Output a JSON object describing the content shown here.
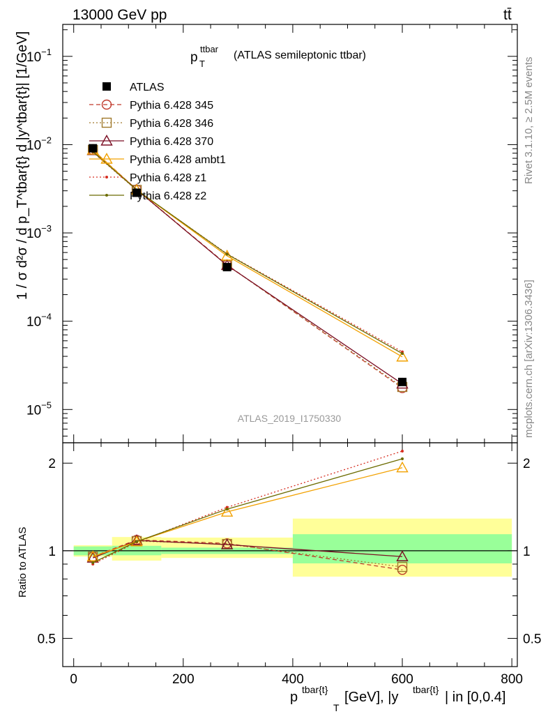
{
  "header": {
    "left": "13000 GeV pp",
    "right": "tt̄"
  },
  "side_labels": {
    "rivet": "Rivet 3.1.10, ≥ 2.5M events",
    "mcplots": "mcplots.cern.ch [arXiv:1306.3436]"
  },
  "watermark": "ATLAS_2019_I1750330",
  "chart_data": [
    {
      "type": "line",
      "title": "p_T^ttbar (ATLAS semileptonic ttbar)",
      "title_main": "p",
      "title_sup": "ttbar",
      "title_sub": "T",
      "title_rest": "(ATLAS semileptonic ttbar)",
      "ylabel": "1 / σ d²σ / d p_T^tbar{t} d |y^tbar{t}| [1/GeV]",
      "yscale": "log",
      "ylim": [
        4.2e-06,
        0.23
      ],
      "xlim": [
        -20,
        810
      ],
      "legend_placement": "top-left",
      "y_tick_labels": [
        {
          "value": 0.1,
          "base": "10",
          "exp": "−1"
        },
        {
          "value": 0.01,
          "base": "10",
          "exp": "−2"
        },
        {
          "value": 0.001,
          "base": "10",
          "exp": "−3"
        },
        {
          "value": 0.0001,
          "base": "10",
          "exp": "−4"
        },
        {
          "value": 1e-05,
          "base": "10",
          "exp": "−5"
        }
      ],
      "data": {
        "name": "ATLAS",
        "x": [
          35,
          115,
          280,
          600
        ],
        "y": [
          0.0091,
          0.00285,
          0.00041,
          2.05e-05
        ]
      },
      "series": [
        {
          "name": "Pythia 6.428 345",
          "color": "#c0392b",
          "dash": "6,4",
          "marker": "circle",
          "x": [
            35,
            115,
            280,
            600
          ],
          "y": [
            0.0087,
            0.0031,
            0.000435,
            1.75e-05
          ]
        },
        {
          "name": "Pythia 6.428 346",
          "color": "#a0792b",
          "dash": "2,3",
          "marker": "square",
          "x": [
            35,
            115,
            280,
            600
          ],
          "y": [
            0.0087,
            0.00307,
            0.000432,
            1.8e-05
          ]
        },
        {
          "name": "Pythia 6.428 370",
          "color": "#7b0f24",
          "dash": "",
          "marker": "triangle",
          "x": [
            35,
            115,
            280,
            600
          ],
          "y": [
            0.0086,
            0.00309,
            0.00043,
            1.95e-05
          ]
        },
        {
          "name": "Pythia 6.428 ambt1",
          "color": "#f2a100",
          "dash": "",
          "marker": "triangle-filled",
          "x": [
            35,
            115,
            280,
            600
          ],
          "y": [
            0.0087,
            0.00306,
            0.00055,
            3.95e-05
          ]
        },
        {
          "name": "Pythia 6.428 z1",
          "color": "#d62d20",
          "dash": "2,3",
          "marker": "dot",
          "x": [
            35,
            115,
            280,
            600
          ],
          "y": [
            0.0082,
            0.00305,
            0.00058,
            4.5e-05
          ]
        },
        {
          "name": "Pythia 6.428 z2",
          "color": "#6b6b00",
          "dash": "",
          "marker": "dot",
          "x": [
            35,
            115,
            280,
            600
          ],
          "y": [
            0.0083,
            0.00307,
            0.000575,
            4.3e-05
          ]
        }
      ]
    },
    {
      "type": "line",
      "ylabel": "Ratio to ATLAS",
      "xlabel": "p_T^tbar{t} [GeV], |y^tbar{t}| in [0,0.4]",
      "xlabel_parts": {
        "p": "p",
        "sup": "tbar{t}",
        "sub": "T",
        "mid": "[GeV], |y",
        "sup2": "tbar{t}",
        "end": "| in [0,0.4]"
      },
      "yscale": "log",
      "ylim": [
        0.4,
        2.35
      ],
      "xlim": [
        -20,
        810
      ],
      "x_ticks": [
        0,
        200,
        400,
        600,
        800
      ],
      "x_tick_labels": [
        "0",
        "200",
        "400",
        "600",
        "800"
      ],
      "y_ticks": [
        0.5,
        1,
        2
      ],
      "y_tick_labels": [
        "0.5",
        "1",
        "2"
      ],
      "bands": [
        {
          "x0": 0,
          "x1": 70,
          "inner": [
            0.965,
            1.035
          ],
          "outer": [
            0.955,
            1.045
          ]
        },
        {
          "x0": 70,
          "x1": 160,
          "inner": [
            0.965,
            1.04
          ],
          "outer": [
            0.925,
            1.115
          ]
        },
        {
          "x0": 160,
          "x1": 400,
          "inner": [
            0.975,
            1.025
          ],
          "outer": [
            0.945,
            1.11
          ]
        },
        {
          "x0": 400,
          "x1": 800,
          "inner": [
            0.905,
            1.14
          ],
          "outer": [
            0.815,
            1.29
          ]
        }
      ],
      "series": [
        {
          "name": "Pythia 6.428 345",
          "x": [
            35,
            115,
            280,
            600
          ],
          "y": [
            0.955,
            1.09,
            1.06,
            0.86
          ]
        },
        {
          "name": "Pythia 6.428 346",
          "x": [
            35,
            115,
            280,
            600
          ],
          "y": [
            0.955,
            1.08,
            1.055,
            0.88
          ]
        },
        {
          "name": "Pythia 6.428 370",
          "x": [
            35,
            115,
            280,
            600
          ],
          "y": [
            0.945,
            1.085,
            1.05,
            0.955
          ]
        },
        {
          "name": "Pythia 6.428 ambt1",
          "x": [
            35,
            115,
            280,
            600
          ],
          "y": [
            0.955,
            1.075,
            1.36,
            1.93
          ]
        },
        {
          "name": "Pythia 6.428 z1",
          "x": [
            35,
            115,
            280,
            600
          ],
          "y": [
            0.9,
            1.07,
            1.41,
            2.2
          ]
        },
        {
          "name": "Pythia 6.428 z2",
          "x": [
            35,
            115,
            280,
            600
          ],
          "y": [
            0.91,
            1.075,
            1.39,
            2.07
          ]
        }
      ]
    }
  ]
}
